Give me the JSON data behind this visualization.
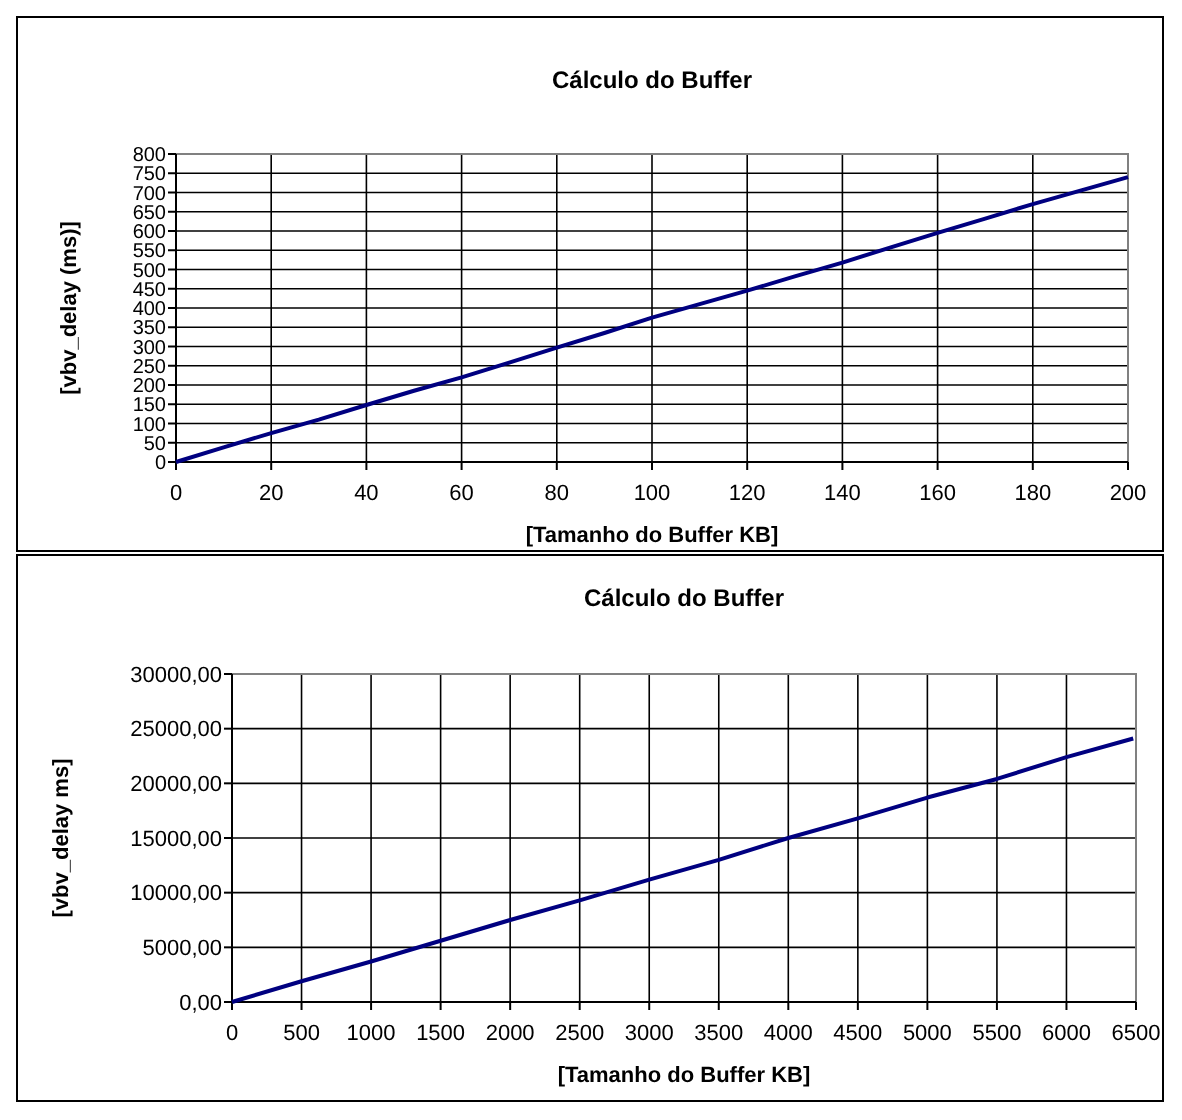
{
  "chart_data": [
    {
      "type": "line",
      "title": "Cálculo do Buffer",
      "xlabel": "[Tamanho do Buffer KB]",
      "ylabel": "[vbv_delay (ms)]",
      "x": [
        0,
        10,
        20,
        30,
        40,
        50,
        60,
        70,
        80,
        90,
        100,
        110,
        120,
        130,
        140,
        150,
        160,
        170,
        180,
        190,
        200
      ],
      "series": [
        {
          "color": "#000080",
          "values": [
            0,
            38,
            75,
            110,
            148,
            185,
            220,
            258,
            297,
            335,
            375,
            410,
            445,
            482,
            518,
            557,
            595,
            632,
            670,
            705,
            740
          ]
        }
      ],
      "xlim": [
        0,
        200
      ],
      "xticks": [
        0,
        20,
        40,
        60,
        80,
        100,
        120,
        140,
        160,
        180,
        200
      ],
      "ylim": [
        0,
        800
      ],
      "yticks": [
        0,
        50,
        100,
        150,
        200,
        250,
        300,
        350,
        400,
        450,
        500,
        550,
        600,
        650,
        700,
        750,
        800
      ],
      "grid": true,
      "marker": "none",
      "line_style": "solid"
    },
    {
      "type": "line",
      "title": "Cálculo do Buffer",
      "xlabel": "[Tamanho do Buffer KB]",
      "ylabel": "[vbv_delay ms]",
      "x": [
        0,
        500,
        1000,
        1500,
        2000,
        2500,
        3000,
        3500,
        4000,
        4500,
        5000,
        5500,
        6000,
        6480
      ],
      "series": [
        {
          "color": "#000080",
          "values": [
            0,
            1900,
            3700,
            5600,
            7500,
            9300,
            11200,
            13000,
            15000,
            16800,
            18700,
            20400,
            22400,
            24100
          ]
        }
      ],
      "xlim": [
        0,
        6500
      ],
      "xticks": [
        0,
        500,
        1000,
        1500,
        2000,
        2500,
        3000,
        3500,
        4000,
        4500,
        5000,
        5500,
        6000,
        6500
      ],
      "ylim": [
        0,
        30000
      ],
      "yticks": [
        {
          "value": 0,
          "label": "0,00"
        },
        {
          "value": 5000,
          "label": "5000,00"
        },
        {
          "value": 10000,
          "label": "10000,00"
        },
        {
          "value": 15000,
          "label": "15000,00"
        },
        {
          "value": 20000,
          "label": "20000,00"
        },
        {
          "value": 25000,
          "label": "25000,00"
        },
        {
          "value": 30000,
          "label": "30000,00"
        }
      ],
      "grid": true,
      "marker": "none",
      "line_style": "solid"
    }
  ]
}
